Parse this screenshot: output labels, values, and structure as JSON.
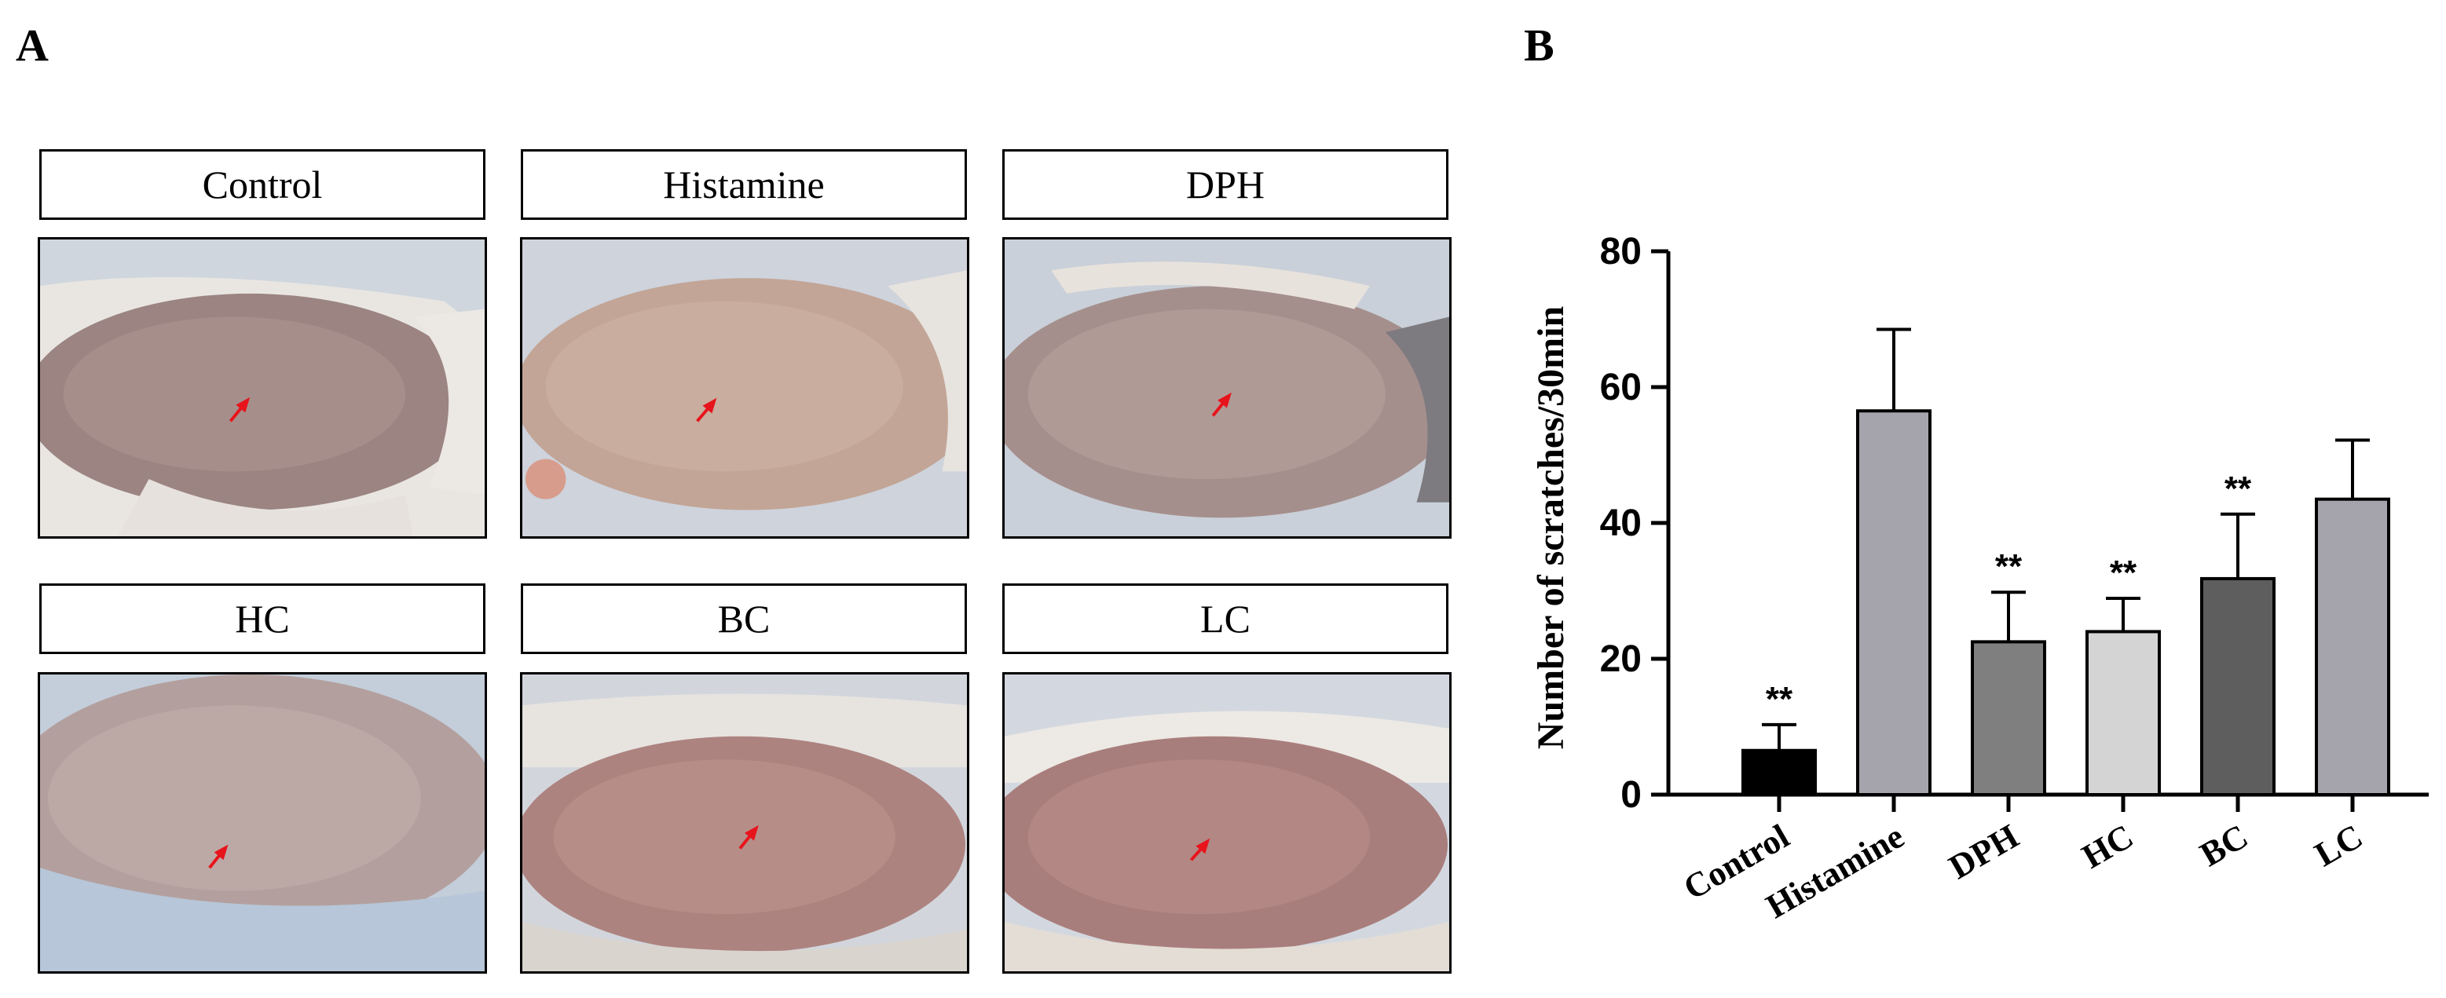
{
  "panels": {
    "a": "A",
    "b": "B"
  },
  "photo_labels": [
    "Control",
    "Histamine",
    "DPH",
    "HC",
    "BC",
    "LC"
  ],
  "photo_content": [
    "mouse-back-skin-photo",
    "mouse-back-skin-photo",
    "mouse-back-skin-photo",
    "mouse-back-skin-photo",
    "mouse-back-skin-photo",
    "mouse-back-skin-photo"
  ],
  "colors": {
    "arrow": "#e8141c",
    "axis": "#000000"
  },
  "chart_data": {
    "type": "bar",
    "categories": [
      "Control",
      "Histamine",
      "DPH",
      "HC",
      "BC",
      "LC"
    ],
    "values": [
      6.5,
      56.5,
      22.5,
      24.0,
      31.8,
      43.5
    ],
    "errors": [
      3.8,
      12.0,
      7.3,
      4.9,
      9.5,
      8.7
    ],
    "significance": [
      "**",
      "",
      "**",
      "**",
      "**",
      ""
    ],
    "bar_colors": [
      "#000000",
      "#a5a4ac",
      "#7f7f7f",
      "#d4d4d4",
      "#5e5e5e",
      "#a5a4ac"
    ],
    "ylabel": "Number of scratches/30min",
    "xlabel": "",
    "ylim": [
      0,
      80
    ],
    "yticks": [
      0,
      20,
      40,
      60,
      80
    ],
    "ytick_labels": [
      "0",
      "20",
      "40",
      "60",
      "80"
    ]
  }
}
